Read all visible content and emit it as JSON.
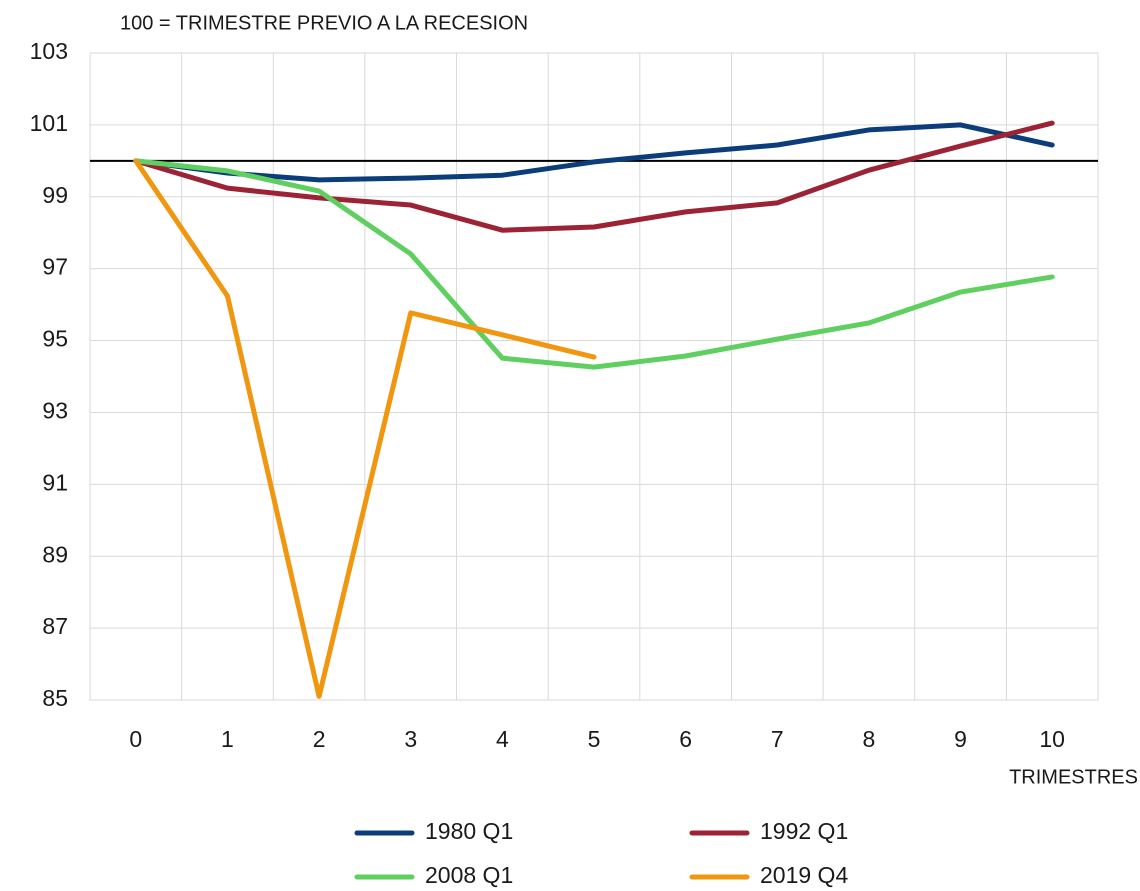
{
  "chart_data": {
    "type": "line",
    "subtitle": "100 = TRIMESTRE PREVIO A LA RECESION",
    "x_label": "TRIMESTRES",
    "categories": [
      "0",
      "1",
      "2",
      "3",
      "4",
      "5",
      "6",
      "7",
      "8",
      "9",
      "10"
    ],
    "series": [
      {
        "name": "1980 Q1",
        "color": "#0b3d7a",
        "values": [
          100,
          99.66,
          99.47,
          99.52,
          99.6,
          99.97,
          100.22,
          100.44,
          100.86,
          101.0,
          100.44
        ]
      },
      {
        "name": "1992 Q1",
        "color": "#9b2335",
        "values": [
          100,
          99.24,
          98.97,
          98.77,
          98.07,
          98.16,
          98.58,
          98.83,
          99.74,
          100.41,
          101.05
        ]
      },
      {
        "name": "2008 Q1",
        "color": "#5fcf5f",
        "values": [
          100,
          99.72,
          99.16,
          97.41,
          94.51,
          94.26,
          94.57,
          95.04,
          95.49,
          96.35,
          96.77
        ]
      },
      {
        "name": "2019 Q4",
        "color": "#f0960f",
        "values": [
          100,
          96.24,
          85.1,
          95.77,
          95.16,
          94.54,
          null,
          null,
          null,
          null,
          null
        ]
      }
    ],
    "ylim": [
      85,
      103
    ],
    "yticks": [
      85,
      87,
      89,
      91,
      93,
      95,
      97,
      99,
      101,
      103
    ],
    "reference_line": 100,
    "grid": true
  }
}
